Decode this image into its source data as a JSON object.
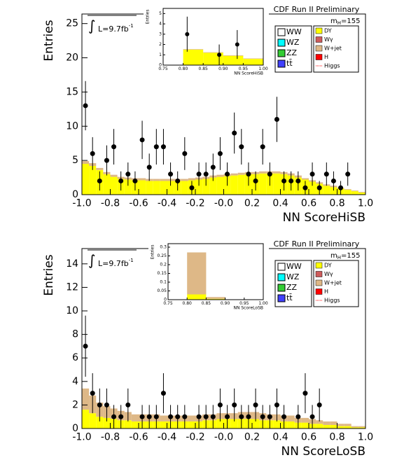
{
  "chart_data": [
    {
      "type": "histogram",
      "title": "CDF Run II Preliminary",
      "x_label": "NN ScoreHiSB",
      "y_label": "Entries",
      "mass_label": "m",
      "mass_sub": "H",
      "mass_value": "=155",
      "integral": "∫",
      "lumi": "L=9.7fb",
      "lumi_sup": "-1",
      "bins": [
        -1,
        -0.95,
        -0.9,
        -0.85,
        -0.8,
        -0.75,
        -0.7,
        -0.65,
        -0.6,
        -0.55,
        -0.5,
        -0.45,
        -0.4,
        -0.35,
        -0.3,
        -0.25,
        -0.2,
        -0.15,
        -0.1,
        -0.05,
        0,
        0.05,
        0.1,
        0.15,
        0.2,
        0.25,
        0.3,
        0.35,
        0.4,
        0.45,
        0.5,
        0.55,
        0.6,
        0.65,
        0.7,
        0.75,
        0.8,
        0.85,
        0.9,
        0.95,
        1
      ],
      "series": [
        {
          "name": "DY",
          "color": "#ffff00",
          "values": [
            4.5,
            4.2,
            3.6,
            3.0,
            2.6,
            2.3,
            2.2,
            2.1,
            2.1,
            2.0,
            2.0,
            2.0,
            2.0,
            2.0,
            2.0,
            2.1,
            2.2,
            2.3,
            2.5,
            2.6,
            2.7,
            2.8,
            2.9,
            3.0,
            3.0,
            3.1,
            3.1,
            3.1,
            3.0,
            2.8,
            2.5,
            2.2,
            1.9,
            1.6,
            1.3,
            1.1,
            0.9,
            0.7,
            0.5,
            0.3
          ]
        },
        {
          "name": "W+jet",
          "color": "#deb887",
          "values": [
            0.4,
            0.4,
            0.3,
            0.3,
            0.3,
            0.3,
            0.3,
            0.3,
            0.3,
            0.3,
            0.3,
            0.3,
            0.3,
            0.3,
            0.3,
            0.3,
            0.3,
            0.3,
            0.3,
            0.3,
            0.3,
            0.3,
            0.3,
            0.3,
            0.3,
            0.3,
            0.3,
            0.3,
            0.3,
            0.3,
            0.3,
            0.2,
            0.2,
            0.2,
            0.2,
            0.2,
            0.1,
            0.1,
            0.1,
            0.1
          ]
        }
      ],
      "data": {
        "values": [
          13,
          6,
          2,
          5,
          7,
          2,
          3,
          2,
          8,
          4,
          7,
          7,
          3,
          2,
          6,
          1,
          3,
          3,
          4,
          6,
          3,
          9,
          7,
          3,
          2,
          7,
          3,
          11,
          2,
          2,
          2,
          1,
          3,
          1,
          3,
          2,
          1,
          3,
          null,
          null
        ],
        "errors": [
          3.6,
          2.4,
          1.4,
          2.2,
          2.6,
          1.4,
          1.7,
          1.4,
          2.8,
          2,
          2.6,
          2.6,
          1.7,
          1.4,
          2.4,
          1,
          1.7,
          1.7,
          2,
          2.4,
          1.7,
          3,
          2.6,
          1.7,
          1.4,
          2.6,
          1.7,
          3.3,
          1.4,
          1.4,
          1.4,
          1,
          1.7,
          1,
          1.7,
          1.4,
          1,
          1.7,
          null,
          null
        ]
      },
      "legend_left": [
        {
          "name": "WW",
          "color": "#ffffff"
        },
        {
          "name": "WZ",
          "color": "#00ffff"
        },
        {
          "name": "ZZ",
          "color": "#33cc33"
        },
        {
          "name": "tt̄",
          "color": "#4040ff"
        }
      ],
      "legend_right": [
        {
          "name": "Wγ",
          "color": "#cd5c5c"
        },
        {
          "name": "H",
          "color": "#ff0000"
        },
        {
          "name": "Higgs",
          "color": "#ff0000",
          "line": true
        }
      ],
      "xlim": [
        -1,
        1
      ],
      "xticks": [
        {
          "value": -1,
          "label": "-1.0"
        },
        -0.8,
        -0.6,
        -0.4,
        -0.2,
        {
          "value": 0,
          "label": "-0.0"
        },
        0.2,
        0.4,
        0.6,
        0.8,
        {
          "value": 1,
          "label": "1.0"
        }
      ],
      "ylim": [
        0,
        26.4
      ],
      "yticks": [
        0,
        5,
        10,
        15,
        20,
        25
      ],
      "inset": {
        "y_label": "Entries",
        "x_label": "NN ScoreHiSB",
        "bins": [
          0.75,
          0.8,
          0.85,
          0.9,
          0.95,
          1
        ],
        "series": [
          {
            "color": "#ffff00",
            "values": [
              0,
              1.5,
              1.2,
              0.9,
              0.6
            ]
          },
          {
            "color": "#deb887",
            "values": [
              0,
              0.05,
              0.05,
              0.05,
              0.05
            ]
          }
        ],
        "data": {
          "x": [
            0.81,
            0.89,
            0.935
          ],
          "values": [
            3,
            1,
            2
          ],
          "errors": [
            1.7,
            1,
            1.4
          ]
        },
        "xlim": [
          0.75,
          1
        ],
        "xticks": [
          0.75,
          {
            "value": 0.8,
            "label": "0.80"
          },
          0.85,
          {
            "value": 0.9,
            "label": "0.90"
          },
          0.95,
          {
            "value": 1,
            "label": "1.00"
          }
        ],
        "ylim": [
          0,
          5.5
        ],
        "yticks": [
          0,
          1,
          2,
          3,
          4,
          5
        ]
      }
    },
    {
      "type": "histogram",
      "title": "CDF Run II Preliminary",
      "x_label": "NN ScoreLoSB",
      "y_label": "Entries",
      "mass_label": "m",
      "mass_sub": "H",
      "mass_value": "=155",
      "integral": "∫",
      "lumi": "L=9.7fb",
      "lumi_sup": "-1",
      "bins": [
        -1,
        -0.95,
        -0.9,
        -0.85,
        -0.8,
        -0.75,
        -0.7,
        -0.65,
        -0.6,
        -0.55,
        -0.5,
        -0.45,
        -0.4,
        -0.35,
        -0.3,
        -0.25,
        -0.2,
        -0.15,
        -0.1,
        -0.05,
        0,
        0.05,
        0.1,
        0.15,
        0.2,
        0.25,
        0.3,
        0.35,
        0.4,
        0.45,
        0.5,
        0.55,
        0.6,
        0.65,
        0.7,
        0.75,
        0.8,
        0.85,
        0.9,
        0.95,
        1
      ],
      "series": [
        {
          "name": "DY",
          "color": "#ffff00",
          "values": [
            1.6,
            1.3,
            1.0,
            0.9,
            0.8,
            0.7,
            0.7,
            0.6,
            0.6,
            0.6,
            0.6,
            0.6,
            0.6,
            0.6,
            0.6,
            0.6,
            0.6,
            0.7,
            0.7,
            0.8,
            0.8,
            0.8,
            0.8,
            0.8,
            0.8,
            0.7,
            0.7,
            0.7,
            0.6,
            0.6,
            0.5,
            0.5,
            0.4,
            0.4,
            0.3,
            0.3,
            0.2,
            0.2,
            0.1,
            0.1
          ]
        },
        {
          "name": "W+jet",
          "color": "#deb887",
          "values": [
            1.8,
            1.5,
            1.2,
            1.0,
            0.9,
            0.8,
            0.7,
            0.6,
            0.6,
            0.6,
            0.6,
            0.5,
            0.5,
            0.5,
            0.5,
            0.5,
            0.5,
            0.5,
            0.5,
            0.5,
            0.5,
            0.5,
            0.6,
            0.6,
            0.6,
            0.6,
            0.5,
            0.5,
            0.5,
            0.5,
            0.4,
            0.4,
            0.4,
            0.3,
            0.3,
            0.3,
            0.2,
            0.2,
            0.1,
            0.1
          ]
        }
      ],
      "data": {
        "values": [
          7,
          3,
          2,
          2,
          1,
          1,
          2,
          null,
          1,
          1,
          1,
          3,
          1,
          1,
          1,
          null,
          1,
          1,
          1,
          2,
          1,
          2,
          1,
          1,
          2,
          1,
          1,
          2,
          1,
          null,
          1,
          3,
          1,
          2,
          null,
          null,
          null,
          null,
          null,
          null
        ],
        "errors": [
          2.6,
          1.7,
          1.4,
          1.4,
          1,
          1,
          1.4,
          null,
          1,
          1,
          1,
          1.7,
          1,
          1,
          1,
          null,
          1,
          1,
          1,
          1.4,
          1,
          1.4,
          1,
          1,
          1.4,
          1,
          1,
          1.4,
          1,
          null,
          1,
          1.7,
          1,
          1.4,
          null,
          null,
          null,
          null,
          null,
          null
        ]
      },
      "legend_left": [
        {
          "name": "WW",
          "color": "#ffffff"
        },
        {
          "name": "WZ",
          "color": "#00ffff"
        },
        {
          "name": "ZZ",
          "color": "#33cc33"
        },
        {
          "name": "tt̄",
          "color": "#4040ff"
        }
      ],
      "legend_right": [
        {
          "name": "Wγ",
          "color": "#cd5c5c"
        },
        {
          "name": "H",
          "color": "#ff0000"
        },
        {
          "name": "Higgs",
          "color": "#ff0000",
          "line": true
        }
      ],
      "xlim": [
        -1,
        1
      ],
      "xticks": [
        {
          "value": -1,
          "label": "-1.0"
        },
        -0.8,
        -0.6,
        -0.4,
        -0.2,
        {
          "value": 0,
          "label": "-0.0"
        },
        0.2,
        0.4,
        0.6,
        0.8,
        {
          "value": 1,
          "label": "1.0"
        }
      ],
      "ylim": [
        0,
        15.3
      ],
      "yticks": [
        0,
        2,
        4,
        6,
        8,
        10,
        12,
        14
      ],
      "inset": {
        "y_label": "Entries",
        "x_label": "NN ScoreLoSB",
        "bins": [
          0.75,
          0.8,
          0.85,
          0.9,
          0.95,
          1
        ],
        "series": [
          {
            "color": "#ffff00",
            "values": [
              0,
              0.03,
              0.005,
              0,
              0
            ]
          },
          {
            "color": "#deb887",
            "values": [
              0,
              0.24,
              0.01,
              0,
              0
            ]
          }
        ],
        "xlim": [
          0.75,
          1
        ],
        "xticks": [
          0.75,
          {
            "value": 0.8,
            "label": "0.80"
          },
          0.85,
          {
            "value": 0.9,
            "label": "0.90"
          },
          0.95,
          {
            "value": 1,
            "label": "1.00"
          }
        ],
        "ylim": [
          0,
          0.32
        ],
        "yticks": [
          0,
          0.05,
          0.1,
          0.15,
          0.2,
          0.25,
          0.3
        ]
      }
    }
  ]
}
